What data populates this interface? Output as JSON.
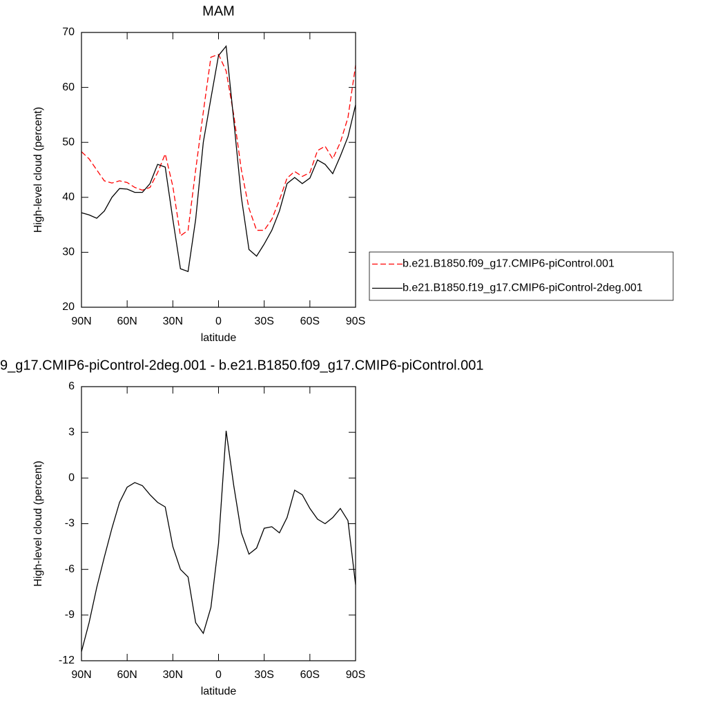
{
  "chart_data": [
    {
      "type": "line",
      "title": "MAM",
      "x_label": "latitude",
      "y_label": "High-level cloud (percent)",
      "x": [
        90,
        85,
        80,
        75,
        70,
        65,
        60,
        55,
        50,
        45,
        40,
        35,
        30,
        25,
        20,
        15,
        10,
        5,
        0,
        -5,
        -10,
        -15,
        -20,
        -25,
        -30,
        -35,
        -40,
        -45,
        -50,
        -55,
        -60,
        -65,
        -70,
        -75,
        -80,
        -85,
        -90
      ],
      "series": [
        {
          "name": "b.e21.B1850.f09_g17.CMIP6-piControl.001",
          "color": "#ff0000",
          "dash": "dashed",
          "values": [
            48.3,
            47,
            45,
            43,
            42.6,
            43,
            42.7,
            41.8,
            41.3,
            41.8,
            44.5,
            47.9,
            42,
            33,
            34,
            45,
            55.5,
            65.5,
            66,
            63,
            55,
            45,
            38,
            34,
            34,
            36,
            39.5,
            43.5,
            44.7,
            43.8,
            44.5,
            48.5,
            49.3,
            47,
            50,
            54.5,
            64
          ]
        },
        {
          "name": "b.e21.B1850.f19_g17.CMIP6-piControl-2deg.001",
          "color": "#000000",
          "dash": "solid",
          "values": [
            37.2,
            36.8,
            36.2,
            37.5,
            40,
            41.6,
            41.5,
            40.9,
            40.9,
            42.5,
            46,
            45.5,
            36,
            27,
            26.5,
            36,
            50,
            58,
            65.8,
            67.5,
            54,
            40,
            30.5,
            29.3,
            31.5,
            34,
            37.5,
            42.5,
            43.6,
            42.5,
            43.5,
            46.8,
            46,
            44.3,
            47.5,
            51,
            56.8
          ]
        }
      ],
      "xlim": [
        90,
        -90
      ],
      "xticks": [
        {
          "value": 90,
          "label": "90N"
        },
        {
          "value": 60,
          "label": "60N"
        },
        {
          "value": 30,
          "label": "30N"
        },
        0,
        {
          "value": -30,
          "label": "30S"
        },
        {
          "value": -60,
          "label": "60S"
        },
        {
          "value": -90,
          "label": "90S"
        }
      ],
      "ylim": [
        20,
        70
      ],
      "yticks": [
        20,
        30,
        40,
        50,
        60,
        70
      ],
      "legend": "right"
    },
    {
      "type": "line",
      "title": "9_g17.CMIP6-piControl-2deg.001 - b.e21.B1850.f09_g17.CMIP6-piControl.001",
      "x_label": "latitude",
      "y_label": "High-level cloud (percent)",
      "x": [
        90,
        85,
        80,
        75,
        70,
        65,
        60,
        55,
        50,
        45,
        40,
        35,
        30,
        25,
        20,
        15,
        10,
        5,
        0,
        -5,
        -10,
        -15,
        -20,
        -25,
        -30,
        -35,
        -40,
        -45,
        -50,
        -55,
        -60,
        -65,
        -70,
        -75,
        -80,
        -85,
        -90
      ],
      "values": [
        -11.4,
        -9.5,
        -7.2,
        -5.2,
        -3.3,
        -1.6,
        -0.6,
        -0.3,
        -0.5,
        -1.1,
        -1.6,
        -1.9,
        -4.5,
        -6,
        -6.5,
        -9.5,
        -10.2,
        -8.5,
        -4.3,
        3.1,
        -0.5,
        -3.6,
        -5,
        -4.6,
        -3.3,
        -3.2,
        -3.6,
        -2.6,
        -0.8,
        -1.1,
        -2,
        -2.7,
        -3,
        -2.6,
        -2,
        -2.8,
        -7
      ],
      "color": "#000000",
      "xlim": [
        90,
        -90
      ],
      "xticks": [
        {
          "value": 90,
          "label": "90N"
        },
        {
          "value": 60,
          "label": "60N"
        },
        {
          "value": 30,
          "label": "30N"
        },
        0,
        {
          "value": -30,
          "label": "30S"
        },
        {
          "value": -60,
          "label": "60S"
        },
        {
          "value": -90,
          "label": "90S"
        }
      ],
      "ylim": [
        -12,
        6
      ],
      "yticks": [
        -12,
        -9,
        -6,
        -3,
        0,
        3,
        6
      ]
    }
  ]
}
